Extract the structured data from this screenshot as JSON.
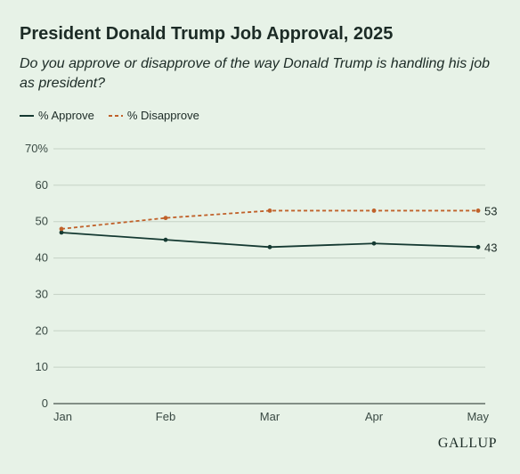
{
  "header": {
    "title": "President Donald Trump Job Approval, 2025",
    "subtitle": "Do you approve or disapprove of the way Donald Trump is handling his job as president?"
  },
  "brand": "GALLUP",
  "colors": {
    "background": "#e7f2e7",
    "grid": "#c5d1c5",
    "approve": "#153a32",
    "disapprove": "#c0612a",
    "text": "#1c2b26"
  },
  "chart_data": {
    "type": "line",
    "categories": [
      "Jan",
      "Feb",
      "Mar",
      "Apr",
      "May"
    ],
    "y_ticks": [
      "0",
      "10",
      "20",
      "30",
      "40",
      "50",
      "60",
      "70%"
    ],
    "ylim": [
      0,
      70
    ],
    "grid": true,
    "legend_position": "top-left",
    "series": [
      {
        "name": "% Approve",
        "values": [
          47,
          45,
          43,
          44,
          43
        ],
        "end_label": "43",
        "style": "solid",
        "color": "#153a32"
      },
      {
        "name": "% Disapprove",
        "values": [
          48,
          51,
          53,
          53,
          53
        ],
        "end_label": "53",
        "style": "dashed",
        "color": "#c0612a"
      }
    ]
  }
}
